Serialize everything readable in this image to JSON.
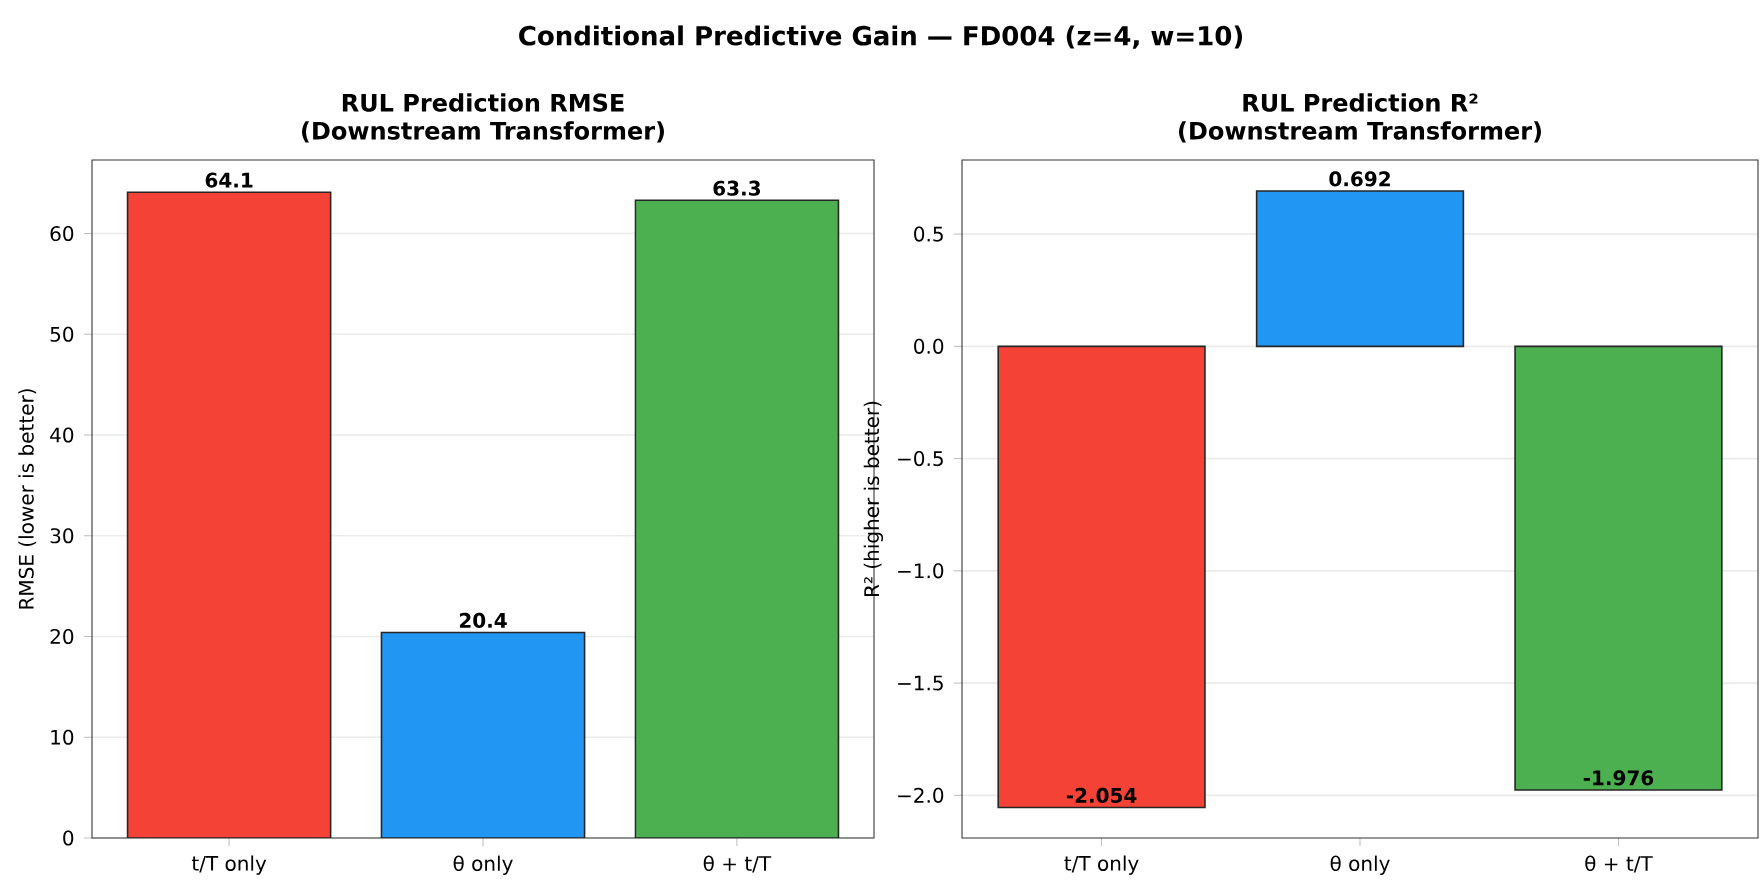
{
  "chart_data": [
    {
      "type": "bar",
      "title": "RUL Prediction RMSE",
      "subtitle": "(Downstream Transformer)",
      "ylabel": "RMSE (lower is better)",
      "annotations": [
        "Conditional Predictive Gain — FD004 (z=4, w=10)"
      ],
      "categories": [
        "t/T only",
        "θ only",
        "θ + t/T"
      ],
      "values": [
        64.1,
        20.4,
        63.3
      ],
      "colors": [
        "#f44336",
        "#2196f3",
        "#4caf50"
      ],
      "value_labels": [
        "64.1",
        "20.4",
        "63.3"
      ],
      "ylim": [
        0,
        67.3
      ],
      "yticks": [
        0,
        10,
        20,
        30,
        40,
        50,
        60
      ],
      "grid": "y"
    },
    {
      "type": "bar",
      "title": "RUL Prediction R²",
      "subtitle": "(Downstream Transformer)",
      "ylabel": "R² (higher is better)",
      "categories": [
        "t/T only",
        "θ only",
        "θ + t/T"
      ],
      "values": [
        -2.054,
        0.692,
        -1.976
      ],
      "colors": [
        "#f44336",
        "#2196f3",
        "#4caf50"
      ],
      "value_labels": [
        "-2.054",
        "0.692",
        "-1.976"
      ],
      "ylim": [
        -2.19,
        0.83
      ],
      "yticks": [
        {
          "value": -2.0,
          "label": "−2.0"
        },
        {
          "value": -1.5,
          "label": "−1.5"
        },
        {
          "value": -1.0,
          "label": "−1.0"
        },
        {
          "value": -0.5,
          "label": "−0.5"
        },
        {
          "value": 0.0,
          "label": "0.0"
        },
        {
          "value": 0.5,
          "label": "0.5"
        }
      ],
      "grid": "y"
    }
  ]
}
